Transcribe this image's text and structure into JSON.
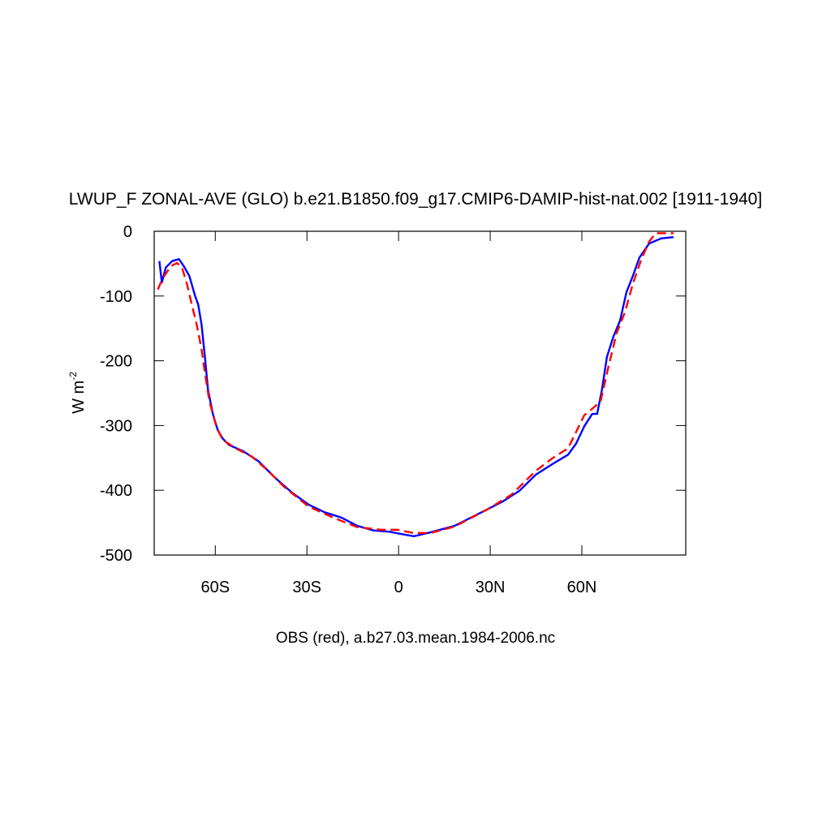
{
  "chart_data": {
    "type": "line",
    "title": "LWUP_F ZONAL-AVE (GLO) b.e21.B1850.f09_g17.CMIP6-DAMIP-hist-nat.002 [1911-1940]",
    "subtitle": "OBS (red), a.b27.03.mean.1984-2006.nc",
    "y_label": "W m",
    "y_label_superscript": "-2",
    "xlim": [
      -80,
      94
    ],
    "ylim": [
      -500,
      0
    ],
    "xticks": [
      {
        "value": -60,
        "label": "60S"
      },
      {
        "value": -30,
        "label": "30S"
      },
      0,
      {
        "value": 30,
        "label": "30N"
      },
      {
        "value": 60,
        "label": "60N"
      }
    ],
    "yticks": [
      0,
      -100,
      -200,
      -300,
      -400,
      -500
    ],
    "series": [
      {
        "color": "#0000ff",
        "dashed": false,
        "x": [
          -78.3,
          -77.5,
          -76.2,
          -74.1,
          -71.9,
          -70.3,
          -68.5,
          -66.6,
          -65.6,
          -64.5,
          -63.4,
          -62.4,
          -60.8,
          -59.2,
          -57.6,
          -55.5,
          -50.7,
          -45.9,
          -40.1,
          -34.8,
          -29.5,
          -24.2,
          -18.8,
          -13.5,
          -8.2,
          -2.9,
          0.3,
          5.0,
          10.4,
          18.3,
          26.3,
          34.2,
          39.5,
          44.9,
          50.2,
          55.5,
          58.1,
          60.8,
          63.4,
          65.0,
          66.6,
          68.2,
          70.3,
          72.5,
          74.6,
          76.7,
          78.8,
          82.0,
          86.0,
          90.0
        ],
        "values": [
          -46,
          -79,
          -56,
          -46,
          -43,
          -54,
          -69,
          -100,
          -113,
          -144,
          -194,
          -244,
          -282,
          -307,
          -320,
          -330,
          -340,
          -355,
          -382,
          -404,
          -422,
          -434,
          -442,
          -455,
          -462,
          -464,
          -467,
          -471,
          -465,
          -455,
          -436,
          -417,
          -401,
          -376,
          -360,
          -345,
          -328,
          -301,
          -282,
          -282,
          -244,
          -194,
          -163,
          -138,
          -94,
          -69,
          -41,
          -19,
          -11,
          -9
        ]
      },
      {
        "color": "#ff0000",
        "dashed": true,
        "x": [
          -78.8,
          -78.0,
          -76.7,
          -74.6,
          -72.5,
          -70.9,
          -69.3,
          -67.7,
          -66.1,
          -64.5,
          -63.4,
          -61.9,
          -59.7,
          -57.6,
          -53.4,
          -48.0,
          -42.7,
          -37.4,
          -29.5,
          -21.5,
          -13.5,
          -5.6,
          -0.3,
          5.0,
          10.4,
          18.3,
          28.9,
          36.9,
          44.9,
          50.2,
          55.5,
          60.8,
          63.4,
          66.1,
          68.8,
          71.4,
          74.1,
          76.7,
          79.4,
          82.0,
          84.2,
          90.0
        ],
        "values": [
          -90,
          -81,
          -69,
          -54,
          -49,
          -56,
          -81,
          -113,
          -144,
          -182,
          -219,
          -263,
          -301,
          -322,
          -335,
          -348,
          -370,
          -395,
          -425,
          -442,
          -457,
          -461,
          -461,
          -466,
          -466,
          -456,
          -430,
          -407,
          -370,
          -351,
          -335,
          -284,
          -274,
          -263,
          -207,
          -157,
          -125,
          -81,
          -44,
          -16,
          -3,
          -3
        ]
      }
    ]
  }
}
